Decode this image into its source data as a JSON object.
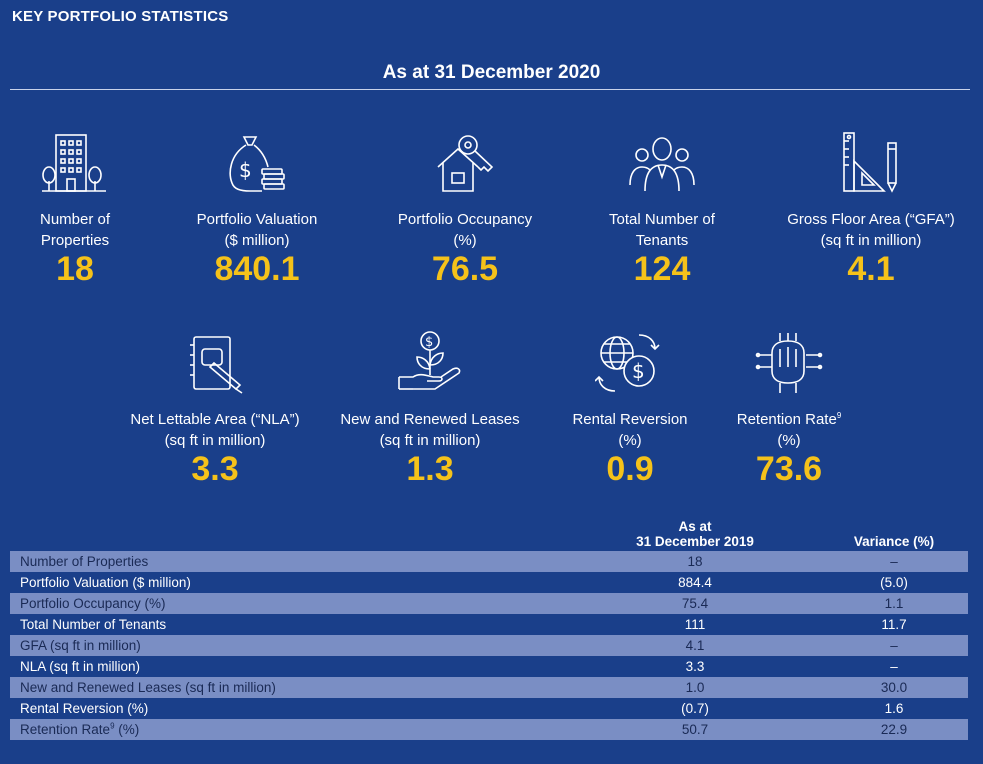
{
  "header": {
    "section_title": "KEY PORTFOLIO STATISTICS",
    "as_at": "As at  31 December 2020"
  },
  "colors": {
    "background": "#1a3f8a",
    "value_accent": "#f5c21a",
    "row_highlight": "#7a8ec4"
  },
  "stats_row1": [
    {
      "label_line1": "Number of",
      "label_line2": "Properties",
      "value": "18",
      "icon": "building-icon"
    },
    {
      "label_line1": "Portfolio Valuation",
      "label_line2": "($ million)",
      "value": "840.1",
      "icon": "money-bag-icon"
    },
    {
      "label_line1": "Portfolio Occupancy",
      "label_line2": "(%)",
      "value": "76.5",
      "icon": "house-key-icon"
    },
    {
      "label_line1": "Total Number of",
      "label_line2": "Tenants",
      "value": "124",
      "icon": "people-icon"
    },
    {
      "label_line1": "Gross Floor Area (“GFA”)",
      "label_line2": "(sq ft in million)",
      "value": "4.1",
      "icon": "ruler-triangle-icon"
    }
  ],
  "stats_row2": [
    {
      "label_line1": "Net Lettable Area (“NLA”)",
      "label_line2": "(sq ft in million)",
      "value": "3.3",
      "icon": "notepad-pen-icon"
    },
    {
      "label_line1": "New and Renewed Leases",
      "label_line2": "(sq ft in million)",
      "value": "1.3",
      "icon": "hand-plant-dollar-icon"
    },
    {
      "label_line1": "Rental Reversion",
      "label_line2": "(%)",
      "value": "0.9",
      "icon": "globe-dollar-icon"
    },
    {
      "label_line1": "Retention Rate",
      "label_sup": "9",
      "label_line2": "(%)",
      "value": "73.6",
      "icon": "hands-together-icon"
    }
  ],
  "comparison_table": {
    "col_header_1_line1": "As at",
    "col_header_1_line2": "31 December 2019",
    "col_header_2": "Variance (%)",
    "rows": [
      {
        "metric": "Number of Properties",
        "value_2019": "18",
        "variance": "–"
      },
      {
        "metric": "Portfolio Valuation ($ million)",
        "value_2019": "884.4",
        "variance": "(5.0)"
      },
      {
        "metric": "Portfolio Occupancy (%)",
        "value_2019": "75.4",
        "variance": "1.1"
      },
      {
        "metric": "Total Number of Tenants",
        "value_2019": "111",
        "variance": "11.7"
      },
      {
        "metric": "GFA (sq ft in million)",
        "value_2019": "4.1",
        "variance": "–"
      },
      {
        "metric": "NLA (sq ft in million)",
        "value_2019": "3.3",
        "variance": "–"
      },
      {
        "metric": "New and Renewed Leases (sq ft in million)",
        "value_2019": "1.0",
        "variance": "30.0"
      },
      {
        "metric": "Rental Reversion (%)",
        "value_2019": "(0.7)",
        "variance": "1.6"
      },
      {
        "metric": "Retention Rate",
        "metric_sup": "9",
        "metric_suffix": " (%)",
        "value_2019": "50.7",
        "variance": "22.9"
      }
    ]
  }
}
